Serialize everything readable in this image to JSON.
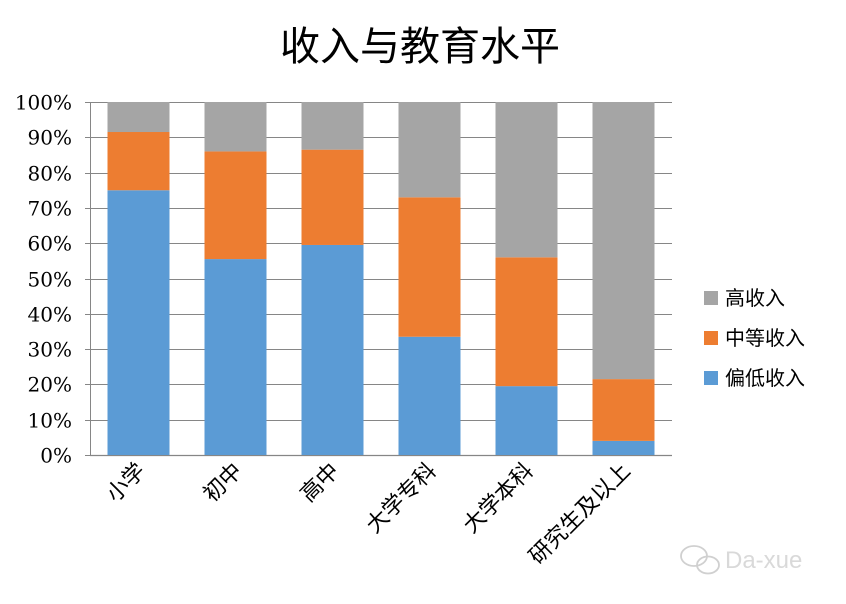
{
  "chart_data": {
    "type": "bar",
    "stacked": true,
    "title": "收入与教育水平",
    "categories": [
      "小学",
      "初中",
      "高中",
      "大学专科",
      "大学本科",
      "研究生及以上"
    ],
    "series": [
      {
        "name": "偏低收入",
        "color": "#5B9BD5",
        "values": [
          0.75,
          0.555,
          0.595,
          0.335,
          0.195,
          0.04
        ]
      },
      {
        "name": "中等收入",
        "color": "#ED7D31",
        "values": [
          0.165,
          0.305,
          0.27,
          0.395,
          0.365,
          0.175
        ]
      },
      {
        "name": "高收入",
        "color": "#A5A5A5",
        "values": [
          0.085,
          0.14,
          0.135,
          0.27,
          0.44,
          0.785
        ]
      }
    ],
    "yticks": [
      "0%",
      "10%",
      "20%",
      "30%",
      "40%",
      "50%",
      "60%",
      "70%",
      "80%",
      "90%",
      "100%"
    ],
    "ylim": [
      0,
      1
    ],
    "grid": true,
    "legend_position": "right",
    "legend_order": [
      "高收入",
      "中等收入",
      "偏低收入"
    ]
  },
  "watermark": "Da-xue",
  "colors": {
    "gridline": "#868686",
    "axis": "#868686",
    "text": "#000000",
    "watermark": "#d9d9d9"
  }
}
